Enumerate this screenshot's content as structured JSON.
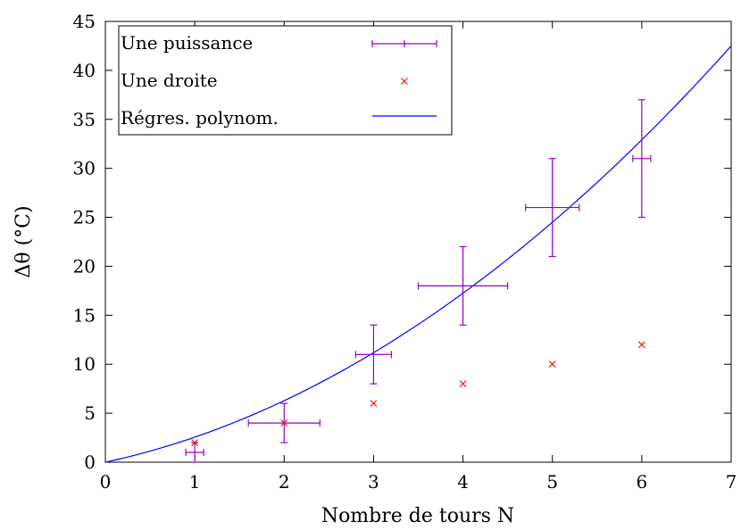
{
  "chart_data": {
    "type": "scatter",
    "xlabel": "Nombre de tours N",
    "ylabel": "Δθ (°C)",
    "xlim": [
      0,
      7
    ],
    "ylim": [
      0,
      45
    ],
    "xticks": [
      "0",
      "1",
      "2",
      "3",
      "4",
      "5",
      "6",
      "7"
    ],
    "yticks": [
      "0",
      "5",
      "10",
      "15",
      "20",
      "25",
      "30",
      "35",
      "40",
      "45"
    ],
    "legend_position": "top-left",
    "grid": false,
    "series": [
      {
        "name": "Une puissance",
        "kind": "errorbars",
        "color": "#9400d3",
        "points": [
          {
            "x": 1,
            "y": 1,
            "xerr": 0.1,
            "yerr": 1
          },
          {
            "x": 2,
            "y": 4,
            "xerr": 0.4,
            "yerr": 2
          },
          {
            "x": 3,
            "y": 11,
            "xerr": 0.2,
            "yerr": 3
          },
          {
            "x": 4,
            "y": 18,
            "xerr": 0.5,
            "yerr": 4
          },
          {
            "x": 5,
            "y": 26,
            "xerr": 0.3,
            "yerr": 5
          },
          {
            "x": 6,
            "y": 31,
            "xerr": 0.1,
            "yerr": 6
          }
        ]
      },
      {
        "name": "Une droite",
        "kind": "points",
        "marker": "x",
        "color": "#e41a1c",
        "points": [
          {
            "x": 1,
            "y": 2
          },
          {
            "x": 2,
            "y": 4
          },
          {
            "x": 3,
            "y": 6
          },
          {
            "x": 4,
            "y": 8
          },
          {
            "x": 5,
            "y": 10
          },
          {
            "x": 6,
            "y": 12
          }
        ]
      },
      {
        "name": "Régres. polynom.",
        "kind": "curve",
        "color": "#0000ff",
        "coefficients": {
          "a": 0.586,
          "b": 1.969,
          "c": 0
        }
      }
    ]
  }
}
